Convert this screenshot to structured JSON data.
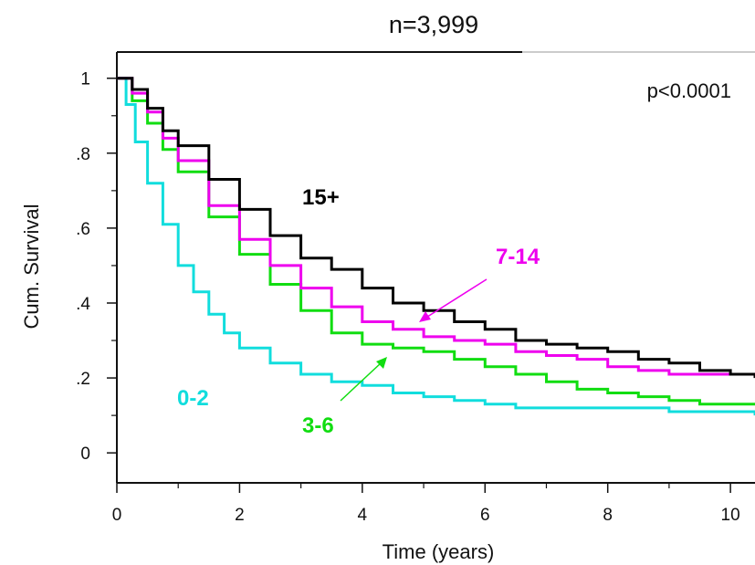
{
  "chart_data": {
    "type": "line",
    "title": "n=3,999",
    "xlabel": "Time (years)",
    "ylabel": "Cum. Survival",
    "xlim": [
      0,
      10.4
    ],
    "ylim": [
      -0.08,
      1.07
    ],
    "x_ticks": [
      0,
      2,
      4,
      6,
      8,
      10
    ],
    "x_tick_labels": [
      "0",
      "2",
      "4",
      "6",
      "8",
      "10"
    ],
    "y_ticks": [
      0,
      0.2,
      0.4,
      0.6,
      0.8,
      1
    ],
    "y_tick_labels": [
      "0",
      ".2",
      ".4",
      ".6",
      ".8",
      "1"
    ],
    "grid": false,
    "annotations": {
      "p_value": "p<0.0001"
    },
    "series": [
      {
        "name": "15+",
        "color": "#000000",
        "points": [
          [
            0,
            1
          ],
          [
            0.25,
            0.97
          ],
          [
            0.5,
            0.92
          ],
          [
            0.75,
            0.86
          ],
          [
            1,
            0.82
          ],
          [
            1.5,
            0.73
          ],
          [
            2,
            0.65
          ],
          [
            2.5,
            0.58
          ],
          [
            3,
            0.52
          ],
          [
            3.5,
            0.49
          ],
          [
            4,
            0.44
          ],
          [
            4.5,
            0.4
          ],
          [
            5,
            0.38
          ],
          [
            5.5,
            0.35
          ],
          [
            6,
            0.33
          ],
          [
            6.5,
            0.3
          ],
          [
            7,
            0.29
          ],
          [
            7.5,
            0.28
          ],
          [
            8,
            0.27
          ],
          [
            8.5,
            0.25
          ],
          [
            9,
            0.24
          ],
          [
            9.5,
            0.22
          ],
          [
            10,
            0.21
          ],
          [
            10.4,
            0.2
          ]
        ]
      },
      {
        "name": "7-14",
        "color": "#ee00ee",
        "points": [
          [
            0,
            1
          ],
          [
            0.25,
            0.96
          ],
          [
            0.5,
            0.91
          ],
          [
            0.75,
            0.84
          ],
          [
            1,
            0.78
          ],
          [
            1.5,
            0.66
          ],
          [
            2,
            0.57
          ],
          [
            2.5,
            0.5
          ],
          [
            3,
            0.44
          ],
          [
            3.5,
            0.39
          ],
          [
            4,
            0.35
          ],
          [
            4.5,
            0.33
          ],
          [
            5,
            0.31
          ],
          [
            5.5,
            0.3
          ],
          [
            6,
            0.29
          ],
          [
            6.5,
            0.27
          ],
          [
            7,
            0.26
          ],
          [
            7.5,
            0.25
          ],
          [
            8,
            0.23
          ],
          [
            8.5,
            0.22
          ],
          [
            9,
            0.21
          ],
          [
            9.5,
            0.21
          ],
          [
            10,
            0.21
          ],
          [
            10.4,
            0.21
          ]
        ]
      },
      {
        "name": "3-6",
        "color": "#11dd11",
        "points": [
          [
            0,
            1
          ],
          [
            0.25,
            0.94
          ],
          [
            0.5,
            0.88
          ],
          [
            0.75,
            0.81
          ],
          [
            1,
            0.75
          ],
          [
            1.5,
            0.63
          ],
          [
            2,
            0.53
          ],
          [
            2.5,
            0.45
          ],
          [
            3,
            0.38
          ],
          [
            3.5,
            0.32
          ],
          [
            4,
            0.29
          ],
          [
            4.5,
            0.28
          ],
          [
            5,
            0.27
          ],
          [
            5.5,
            0.25
          ],
          [
            6,
            0.23
          ],
          [
            6.5,
            0.21
          ],
          [
            7,
            0.19
          ],
          [
            7.5,
            0.17
          ],
          [
            8,
            0.16
          ],
          [
            8.5,
            0.15
          ],
          [
            9,
            0.14
          ],
          [
            9.5,
            0.13
          ],
          [
            10,
            0.13
          ],
          [
            10.4,
            0.13
          ]
        ]
      },
      {
        "name": "0-2",
        "color": "#11dddd",
        "points": [
          [
            0,
            1
          ],
          [
            0.15,
            0.93
          ],
          [
            0.3,
            0.83
          ],
          [
            0.5,
            0.72
          ],
          [
            0.75,
            0.61
          ],
          [
            1,
            0.5
          ],
          [
            1.25,
            0.43
          ],
          [
            1.5,
            0.37
          ],
          [
            1.75,
            0.32
          ],
          [
            2,
            0.28
          ],
          [
            2.5,
            0.24
          ],
          [
            3,
            0.21
          ],
          [
            3.5,
            0.19
          ],
          [
            4,
            0.18
          ],
          [
            4.5,
            0.16
          ],
          [
            5,
            0.15
          ],
          [
            5.5,
            0.14
          ],
          [
            6,
            0.13
          ],
          [
            6.5,
            0.12
          ],
          [
            7,
            0.12
          ],
          [
            8,
            0.12
          ],
          [
            9,
            0.11
          ],
          [
            10,
            0.11
          ],
          [
            10.4,
            0.1
          ]
        ]
      }
    ]
  }
}
